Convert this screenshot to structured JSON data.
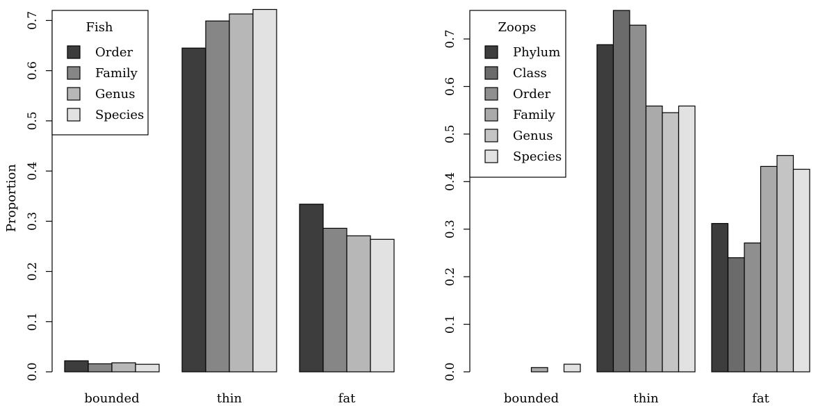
{
  "chart_data": [
    {
      "type": "bar",
      "title": "",
      "xlabel": "",
      "ylabel": "Proportion",
      "ylim": [
        0,
        0.72
      ],
      "yticks": [
        "0.0",
        "0.1",
        "0.2",
        "0.3",
        "0.4",
        "0.5",
        "0.6",
        "0.7"
      ],
      "categories": [
        "bounded",
        "thin",
        "fat"
      ],
      "legend": {
        "title": "Fish",
        "position": "top-left"
      },
      "series": [
        {
          "name": "Order",
          "color": "#3d3d3d",
          "values": [
            0.022,
            0.645,
            0.334
          ]
        },
        {
          "name": "Family",
          "color": "#868686",
          "values": [
            0.016,
            0.699,
            0.286
          ]
        },
        {
          "name": "Genus",
          "color": "#b7b7b7",
          "values": [
            0.018,
            0.713,
            0.271
          ]
        },
        {
          "name": "Species",
          "color": "#e2e2e2",
          "values": [
            0.015,
            0.722,
            0.264
          ]
        }
      ]
    },
    {
      "type": "bar",
      "title": "",
      "xlabel": "",
      "ylabel": "",
      "ylim": [
        0,
        0.76
      ],
      "yticks": [
        "0.0",
        "0.1",
        "0.2",
        "0.3",
        "0.4",
        "0.5",
        "0.6",
        "0.7"
      ],
      "categories": [
        "bounded",
        "thin",
        "fat"
      ],
      "legend": {
        "title": "Zoops",
        "position": "top-left"
      },
      "series": [
        {
          "name": "Phylum",
          "color": "#3d3d3d",
          "values": [
            0.0,
            0.688,
            0.312
          ]
        },
        {
          "name": "Class",
          "color": "#6b6b6b",
          "values": [
            0.0,
            0.76,
            0.24
          ]
        },
        {
          "name": "Order",
          "color": "#8f8f8f",
          "values": [
            0.0,
            0.729,
            0.271
          ]
        },
        {
          "name": "Family",
          "color": "#aaaaaa",
          "values": [
            0.009,
            0.559,
            0.432
          ]
        },
        {
          "name": "Genus",
          "color": "#c4c4c4",
          "values": [
            0.0,
            0.545,
            0.455
          ]
        },
        {
          "name": "Species",
          "color": "#e2e2e2",
          "values": [
            0.016,
            0.559,
            0.426
          ]
        }
      ]
    }
  ]
}
